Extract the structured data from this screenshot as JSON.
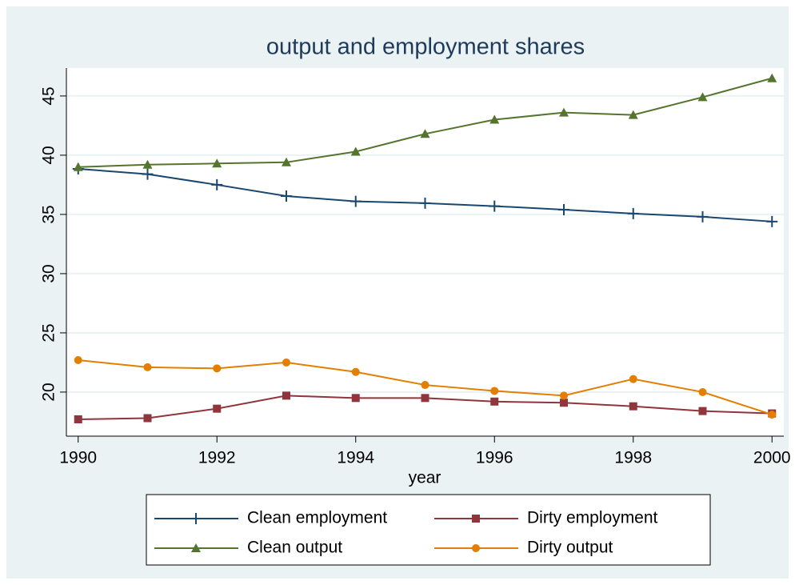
{
  "chart_data": {
    "type": "line",
    "title": "output and employment shares",
    "xlabel": "year",
    "x": [
      1990,
      1991,
      1992,
      1993,
      1994,
      1995,
      1996,
      1997,
      1998,
      1999,
      2000
    ],
    "series": [
      {
        "name": "Clean employment",
        "color": "#1a476f",
        "marker": "plus",
        "values": [
          38.85,
          38.4,
          37.5,
          36.55,
          36.1,
          35.95,
          35.7,
          35.4,
          35.07,
          34.8,
          34.4
        ]
      },
      {
        "name": "Dirty employment",
        "color": "#90353b",
        "marker": "square",
        "values": [
          17.7,
          17.8,
          18.6,
          19.7,
          19.5,
          19.5,
          19.2,
          19.1,
          18.8,
          18.4,
          18.2
        ]
      },
      {
        "name": "Clean output",
        "color": "#55752f",
        "marker": "triangle",
        "values": [
          39.0,
          39.2,
          39.3,
          39.4,
          40.3,
          41.8,
          43.0,
          43.6,
          43.4,
          44.9,
          46.5
        ]
      },
      {
        "name": "Dirty output",
        "color": "#e37e00",
        "marker": "circle",
        "values": [
          22.7,
          22.1,
          22.0,
          22.5,
          21.7,
          20.6,
          20.1,
          19.7,
          21.1,
          20.0,
          18.1
        ]
      }
    ],
    "xlim": [
      1989.83,
      2000.17
    ],
    "xticks": [
      1990,
      1992,
      1994,
      1996,
      1998,
      2000
    ],
    "ylim": [
      16.28,
      47.36
    ],
    "yticks": [
      20,
      25,
      30,
      35,
      40,
      45
    ],
    "grid": true,
    "legend": "bottom"
  }
}
